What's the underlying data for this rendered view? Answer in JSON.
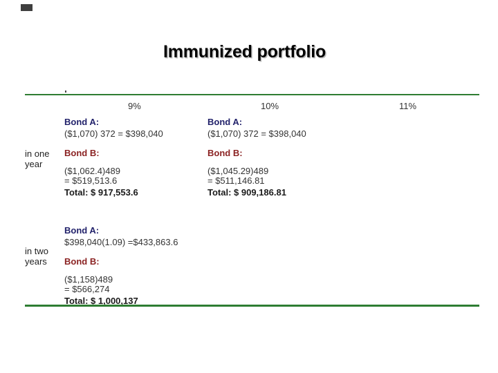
{
  "slide": {
    "title": "Immunized portfolio"
  },
  "colors": {
    "divider_green": "#2e7d32",
    "bond_a_heading": "#22226b",
    "bond_b_heading": "#8b2323",
    "body_text": "#333333",
    "title_text": "#000000"
  },
  "table": {
    "col_headers": [
      "9%",
      "10%",
      "11%"
    ],
    "rows": [
      {
        "label": [
          "in one",
          "year"
        ],
        "cells": [
          {
            "bond_a_label": "Bond A:",
            "bond_a_calc": "($1,070) 372 = $398,040",
            "bond_b_label": "Bond B:",
            "bond_b_calc1": "($1,062.4)489",
            "bond_b_calc2": "= $519,513.6",
            "total": "Total: $ 917,553.6"
          },
          {
            "bond_a_label": "Bond A:",
            "bond_a_calc": "($1,070) 372 = $398,040",
            "bond_b_label": "Bond B:",
            "bond_b_calc1": "($1,045.29)489",
            "bond_b_calc2": "= $511,146.81",
            "total": "Total: $ 909,186.81"
          }
        ]
      },
      {
        "label": [
          "in two",
          "years"
        ],
        "cells": [
          {
            "bond_a_label": "Bond A:",
            "bond_a_calc": "$398,040(1.09) =$433,863.6",
            "bond_b_label": "Bond B:",
            "bond_b_calc1": "($1,158)489",
            "bond_b_calc2": "= $566,274",
            "total": "Total: $ 1,000,137"
          }
        ]
      }
    ]
  }
}
